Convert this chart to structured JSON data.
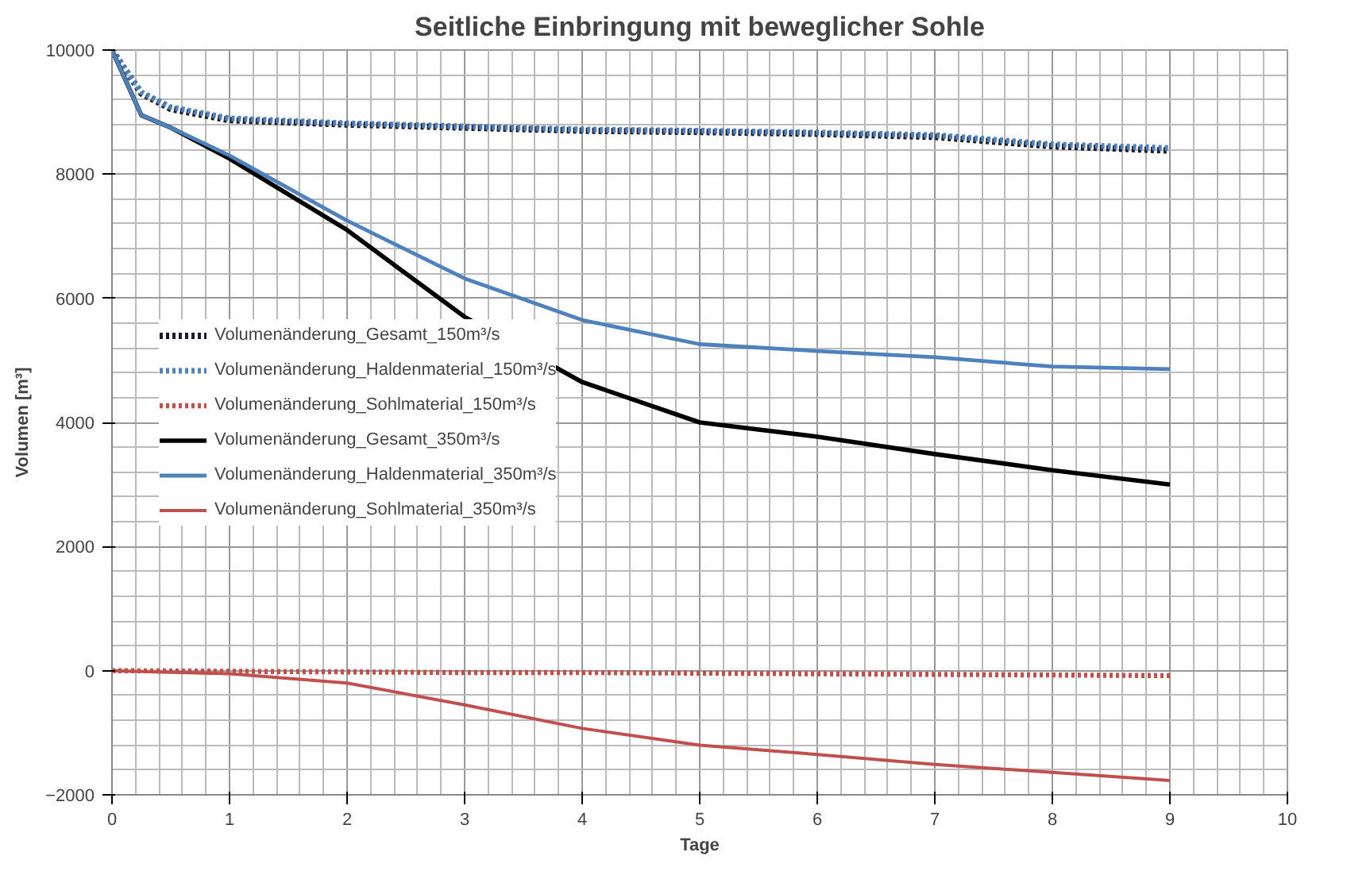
{
  "chart_data": {
    "type": "line",
    "title": "Seitliche Einbringung mit beweglicher Sohle",
    "xlabel": "Tage",
    "ylabel": "Volumen [m³]",
    "xlim": [
      0,
      10
    ],
    "ylim": [
      -2000,
      10000
    ],
    "xticks": [
      0,
      1,
      2,
      3,
      4,
      5,
      6,
      7,
      8,
      9,
      10
    ],
    "yticks": [
      -2000,
      0,
      2000,
      4000,
      6000,
      8000,
      10000
    ],
    "grid": true,
    "legend": "left",
    "marker": "none",
    "series": [
      {
        "name": "Volumenänderung_Gesamt_150m³/s",
        "color": "#1a1a2e",
        "line_style": "dotted",
        "x": [
          0,
          0.25,
          0.5,
          1,
          2,
          3,
          4,
          5,
          6,
          7,
          8,
          9
        ],
        "values": [
          10000,
          9300,
          9050,
          8870,
          8800,
          8750,
          8700,
          8680,
          8650,
          8600,
          8450,
          8380
        ]
      },
      {
        "name": "Volumenänderung_Haldenmaterial_150m³/s",
        "color": "#4f81bd",
        "line_style": "dotted",
        "x": [
          0,
          0.25,
          0.5,
          1,
          2,
          3,
          4,
          5,
          6,
          7,
          8,
          9
        ],
        "values": [
          10000,
          9320,
          9080,
          8900,
          8820,
          8770,
          8720,
          8700,
          8670,
          8630,
          8480,
          8420
        ]
      },
      {
        "name": "Volumenänderung_Sohlmaterial_150m³/s",
        "color": "#c0504d",
        "line_style": "dotted",
        "x": [
          0,
          1,
          2,
          3,
          4,
          5,
          6,
          7,
          8,
          9
        ],
        "values": [
          0,
          -10,
          -20,
          -30,
          -30,
          -40,
          -50,
          -60,
          -70,
          -80
        ]
      },
      {
        "name": "Volumenänderung_Gesamt_350m³/s",
        "color": "#000000",
        "line_style": "solid",
        "x": [
          0,
          0.25,
          0.5,
          1,
          2,
          3,
          4,
          5,
          6,
          7,
          8,
          9
        ],
        "values": [
          10000,
          8950,
          8750,
          8250,
          7100,
          5700,
          4650,
          4000,
          3770,
          3490,
          3230,
          3000
        ]
      },
      {
        "name": "Volumenänderung_Haldenmaterial_350m³/s",
        "color": "#4f81bd",
        "line_style": "solid",
        "x": [
          0,
          0.25,
          0.5,
          1,
          2,
          3,
          4,
          5,
          6,
          7,
          8,
          9
        ],
        "values": [
          10000,
          8950,
          8750,
          8300,
          7250,
          6320,
          5650,
          5260,
          5150,
          5050,
          4900,
          4860
        ]
      },
      {
        "name": "Volumenänderung_Sohlmaterial_350m³/s",
        "color": "#c0504d",
        "line_style": "solid",
        "x": [
          0,
          1,
          2,
          3,
          4,
          5,
          6,
          7,
          8,
          9
        ],
        "values": [
          0,
          -50,
          -200,
          -550,
          -930,
          -1200,
          -1350,
          -1510,
          -1640,
          -1770
        ]
      }
    ]
  }
}
